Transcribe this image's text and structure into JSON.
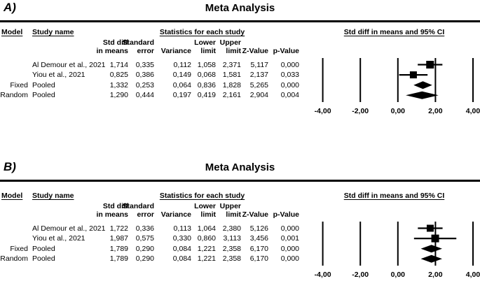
{
  "colors": {
    "ink": "#000000",
    "background": "#ffffff"
  },
  "panels": [
    {
      "label": "A)",
      "title": "Meta Analysis",
      "group_headers": {
        "model": "Model",
        "study": "Study name",
        "stats": "Statistics for each study",
        "plot": "Std diff in means and 95% CI"
      },
      "stat_columns": [
        {
          "line1": "Std diff",
          "line2": "in means"
        },
        {
          "line1": "Standard",
          "line2": "error"
        },
        {
          "line1": "",
          "line2": "Variance"
        },
        {
          "line1": "Lower",
          "line2": "limit"
        },
        {
          "line1": "Upper",
          "line2": "limit"
        },
        {
          "line1": "",
          "line2": "Z-Value"
        },
        {
          "line1": "",
          "line2": "p-Value"
        }
      ],
      "rows": [
        {
          "model": "",
          "study": "Al Demour et al., 2021",
          "std_diff": "1,714",
          "std_err": "0,335",
          "variance": "0,112",
          "lower": "1,058",
          "upper": "2,371",
          "z": "5,117",
          "p": "0,000"
        },
        {
          "model": "",
          "study": "Yiou et al., 2021",
          "std_diff": "0,825",
          "std_err": "0,386",
          "variance": "0,149",
          "lower": "0,068",
          "upper": "1,581",
          "z": "2,137",
          "p": "0,033"
        },
        {
          "model": "Fixed",
          "study": "Pooled",
          "std_diff": "1,332",
          "std_err": "0,253",
          "variance": "0,064",
          "lower": "0,836",
          "upper": "1,828",
          "z": "5,265",
          "p": "0,000"
        },
        {
          "model": "Random",
          "study": "Pooled",
          "std_diff": "1,290",
          "std_err": "0,444",
          "variance": "0,197",
          "lower": "0,419",
          "upper": "2,161",
          "z": "2,904",
          "p": "0,004"
        }
      ],
      "chart_data": {
        "type": "forest",
        "title": "Meta Analysis",
        "xlabel": "Std diff in means and 95% CI",
        "xlim": [
          -4,
          4
        ],
        "ticks": [
          {
            "value": -4,
            "label": "-4,00"
          },
          {
            "value": -2,
            "label": "-2,00"
          },
          {
            "value": 0,
            "label": "0,00"
          },
          {
            "value": 2,
            "label": "2,00"
          },
          {
            "value": 4,
            "label": "4,00"
          }
        ],
        "markers": [
          {
            "label": "Al Demour et al., 2021",
            "shape": "square",
            "mean": 1.714,
            "lower": 1.058,
            "upper": 2.371,
            "size": 11
          },
          {
            "label": "Yiou et al., 2021",
            "shape": "square",
            "mean": 0.825,
            "lower": 0.068,
            "upper": 1.581,
            "size": 10
          },
          {
            "label": "Fixed Pooled",
            "shape": "diamond",
            "mean": 1.332,
            "lower": 0.836,
            "upper": 1.828,
            "size": 11
          },
          {
            "label": "Random Pooled",
            "shape": "diamond",
            "mean": 1.29,
            "lower": 0.419,
            "upper": 2.161,
            "size": 11
          }
        ]
      }
    },
    {
      "label": "B)",
      "title": "Meta Analysis",
      "group_headers": {
        "model": "Model",
        "study": "Study name",
        "stats": "Statistics for each study",
        "plot": "Std diff in means and 95% CI"
      },
      "stat_columns": [
        {
          "line1": "Std diff",
          "line2": "in means"
        },
        {
          "line1": "Standard",
          "line2": "error"
        },
        {
          "line1": "",
          "line2": "Variance"
        },
        {
          "line1": "Lower",
          "line2": "limit"
        },
        {
          "line1": "Upper",
          "line2": "limit"
        },
        {
          "line1": "",
          "line2": "Z-Value"
        },
        {
          "line1": "",
          "line2": "p-Value"
        }
      ],
      "rows": [
        {
          "model": "",
          "study": "Al Demour et al., 2021",
          "std_diff": "1,722",
          "std_err": "0,336",
          "variance": "0,113",
          "lower": "1,064",
          "upper": "2,380",
          "z": "5,126",
          "p": "0,000"
        },
        {
          "model": "",
          "study": "Yiou et al., 2021",
          "std_diff": "1,987",
          "std_err": "0,575",
          "variance": "0,330",
          "lower": "0,860",
          "upper": "3,113",
          "z": "3,456",
          "p": "0,001"
        },
        {
          "model": "Fixed",
          "study": "Pooled",
          "std_diff": "1,789",
          "std_err": "0,290",
          "variance": "0,084",
          "lower": "1,221",
          "upper": "2,358",
          "z": "6,170",
          "p": "0,000"
        },
        {
          "model": "Random",
          "study": "Pooled",
          "std_diff": "1,789",
          "std_err": "0,290",
          "variance": "0,084",
          "lower": "1,221",
          "upper": "2,358",
          "z": "6,170",
          "p": "0,000"
        }
      ],
      "chart_data": {
        "type": "forest",
        "title": "Meta Analysis",
        "xlabel": "Std diff in means and 95% CI",
        "xlim": [
          -4,
          4
        ],
        "ticks": [
          {
            "value": -4,
            "label": "-4,00"
          },
          {
            "value": -2,
            "label": "-2,00"
          },
          {
            "value": 0,
            "label": "0,00"
          },
          {
            "value": 2,
            "label": "2,00"
          },
          {
            "value": 4,
            "label": "4,00"
          }
        ],
        "markers": [
          {
            "label": "Al Demour et al., 2021",
            "shape": "square",
            "mean": 1.722,
            "lower": 1.064,
            "upper": 2.38,
            "size": 10
          },
          {
            "label": "Yiou et al., 2021",
            "shape": "square",
            "mean": 1.987,
            "lower": 0.86,
            "upper": 3.113,
            "size": 11
          },
          {
            "label": "Fixed Pooled",
            "shape": "diamond",
            "mean": 1.789,
            "lower": 1.221,
            "upper": 2.358,
            "size": 11
          },
          {
            "label": "Random Pooled",
            "shape": "diamond",
            "mean": 1.789,
            "lower": 1.221,
            "upper": 2.358,
            "size": 11
          }
        ]
      }
    }
  ]
}
